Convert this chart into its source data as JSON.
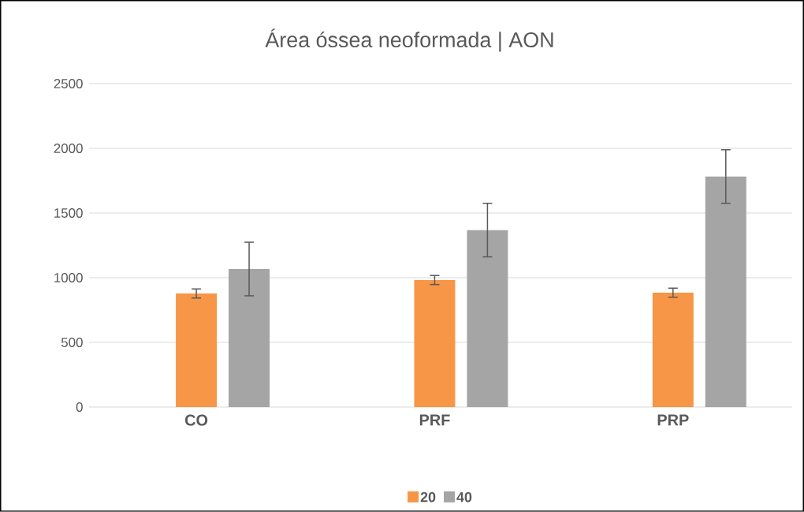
{
  "chart_data": {
    "type": "bar",
    "title": "Área óssea neoformada | AON",
    "categories": [
      "CO",
      "PRF",
      "PRP"
    ],
    "series": [
      {
        "name": "20",
        "color": "#f79646",
        "values": [
          878,
          982,
          884
        ],
        "errors": [
          35,
          35,
          35
        ]
      },
      {
        "name": "40",
        "color": "#a5a5a5",
        "values": [
          1067,
          1368,
          1782
        ],
        "errors": [
          207,
          207,
          207
        ]
      }
    ],
    "ylim": [
      0,
      2500
    ],
    "yticks": [
      0,
      500,
      1000,
      1500,
      2000,
      2500
    ],
    "grid": "y",
    "legend": "bottom"
  }
}
